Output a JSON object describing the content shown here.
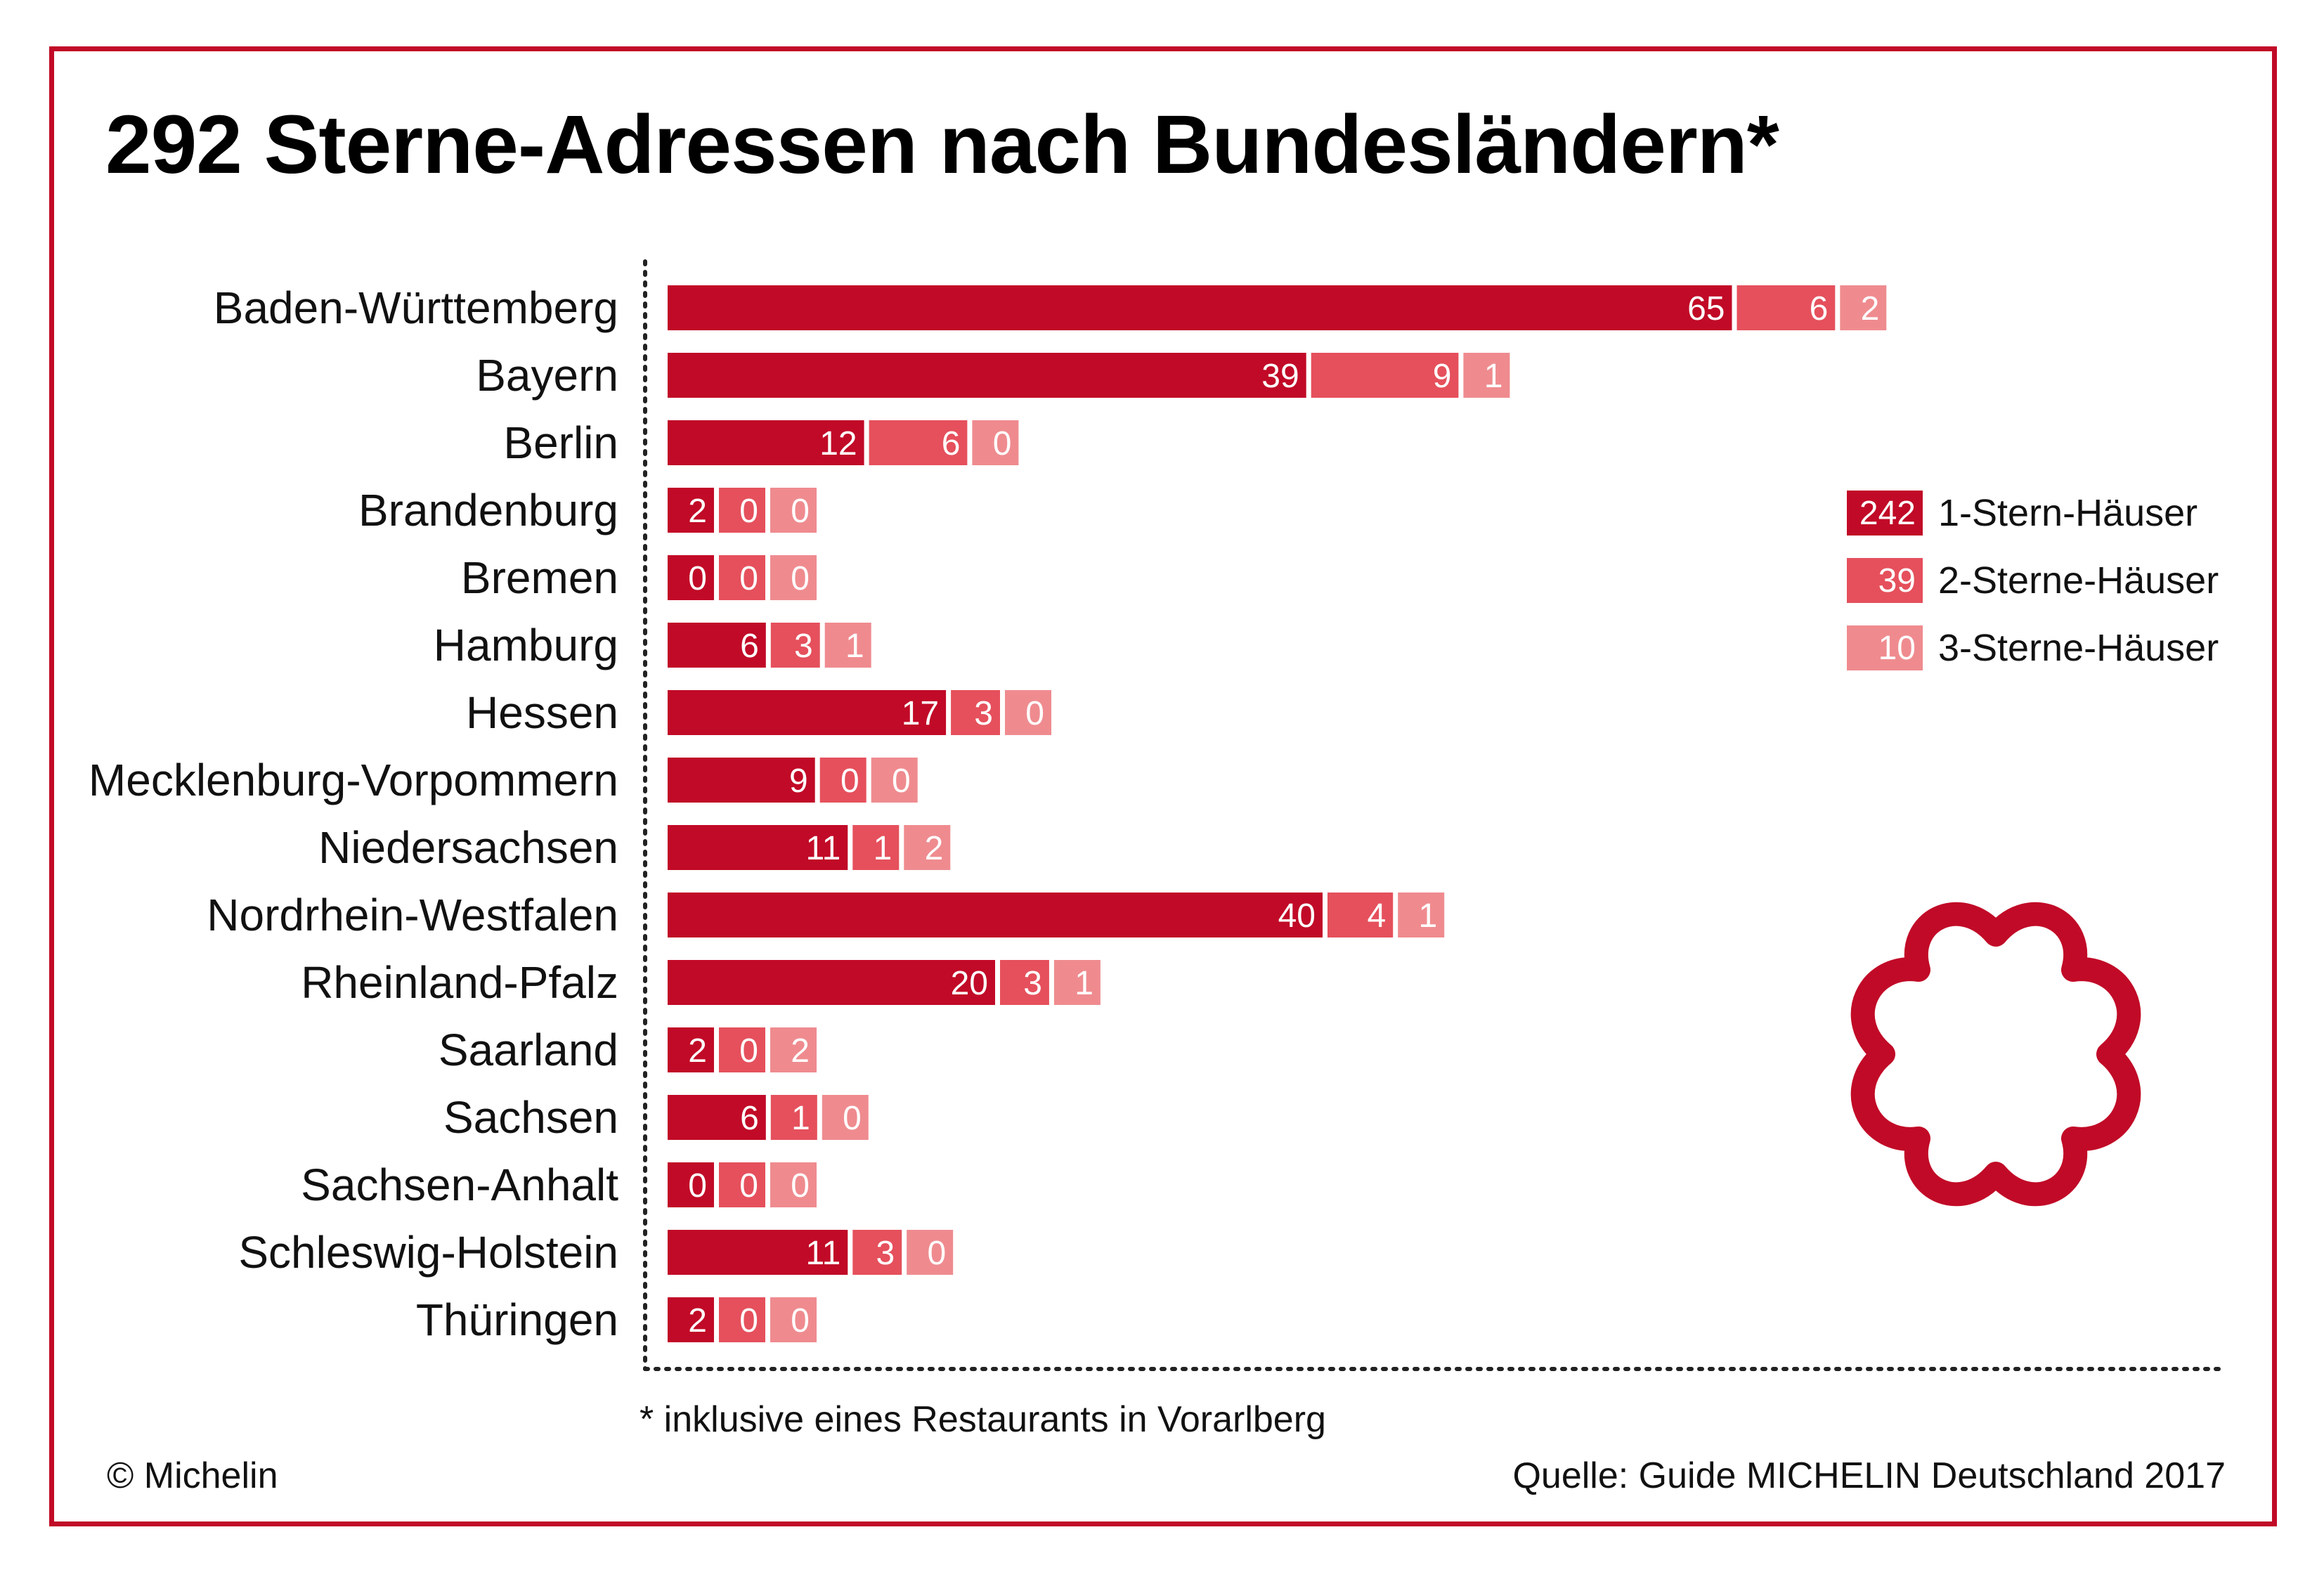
{
  "title": "292 Sterne-Adressen nach Bundesländern*",
  "footnote": "* inklusive eines Restaurants in Vorarlberg",
  "copyright": "© Michelin",
  "source": "Quelle: Guide MICHELIN Deutschland 2017",
  "colors": {
    "frame": "#c10a27",
    "one_star": "#c10a27",
    "two_stars": "#e5505c",
    "three_stars": "#ef8b8f"
  },
  "legend": [
    {
      "value": "242",
      "label": "1-Stern-Häuser"
    },
    {
      "value": "39",
      "label": "2-Sterne-Häuser"
    },
    {
      "value": "10",
      "label": "3-Sterne-Häuser"
    }
  ],
  "logo": "michelin-star-icon",
  "chart_data": {
    "type": "bar",
    "orientation": "horizontal",
    "stacked": true,
    "categories": [
      "Baden-Württemberg",
      "Bayern",
      "Berlin",
      "Brandenburg",
      "Bremen",
      "Hamburg",
      "Hessen",
      "Mecklenburg-Vorpommern",
      "Niedersachsen",
      "Nordrhein-Westfalen",
      "Rheinland-Pfalz",
      "Saarland",
      "Sachsen",
      "Sachsen-Anhalt",
      "Schleswig-Holstein",
      "Thüringen"
    ],
    "series": [
      {
        "name": "1-Stern-Häuser",
        "values": [
          65,
          39,
          12,
          2,
          0,
          6,
          17,
          9,
          11,
          40,
          20,
          2,
          6,
          0,
          11,
          2
        ]
      },
      {
        "name": "2-Sterne-Häuser",
        "values": [
          6,
          9,
          6,
          0,
          0,
          3,
          3,
          0,
          1,
          4,
          3,
          0,
          1,
          0,
          3,
          0
        ]
      },
      {
        "name": "3-Sterne-Häuser",
        "values": [
          2,
          1,
          0,
          0,
          0,
          1,
          0,
          0,
          2,
          1,
          1,
          2,
          0,
          0,
          0,
          0
        ]
      }
    ],
    "grid": false,
    "legend_position": "right"
  }
}
